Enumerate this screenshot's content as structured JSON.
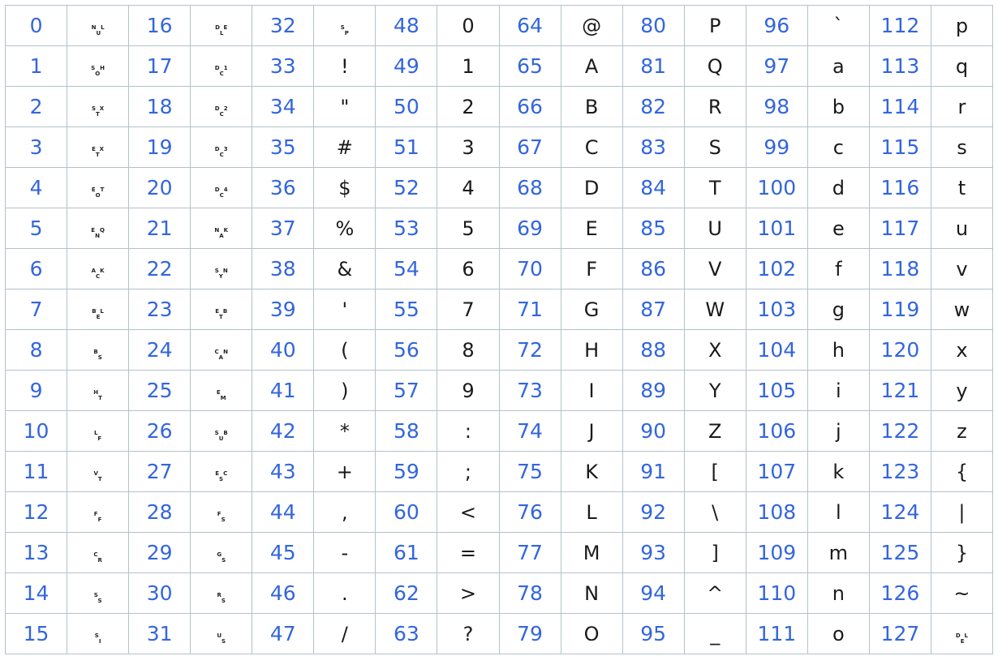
{
  "columns": [
    {
      "rows": [
        {
          "code": "0",
          "char": "",
          "ctrl": [
            "N",
            "U",
            "L"
          ]
        },
        {
          "code": "1",
          "char": "",
          "ctrl": [
            "S",
            "O",
            "H"
          ]
        },
        {
          "code": "2",
          "char": "",
          "ctrl": [
            "S",
            "T",
            "X"
          ]
        },
        {
          "code": "3",
          "char": "",
          "ctrl": [
            "E",
            "T",
            "X"
          ]
        },
        {
          "code": "4",
          "char": "",
          "ctrl": [
            "E",
            "O",
            "T"
          ]
        },
        {
          "code": "5",
          "char": "",
          "ctrl": [
            "E",
            "N",
            "Q"
          ]
        },
        {
          "code": "6",
          "char": "",
          "ctrl": [
            "A",
            "C",
            "K"
          ]
        },
        {
          "code": "7",
          "char": "",
          "ctrl": [
            "B",
            "E",
            "L"
          ]
        },
        {
          "code": "8",
          "char": "",
          "ctrl": [
            "B",
            "S"
          ]
        },
        {
          "code": "9",
          "char": "",
          "ctrl": [
            "H",
            "T"
          ]
        },
        {
          "code": "10",
          "char": "",
          "ctrl": [
            "L",
            "F"
          ]
        },
        {
          "code": "11",
          "char": "",
          "ctrl": [
            "V",
            "T"
          ]
        },
        {
          "code": "12",
          "char": "",
          "ctrl": [
            "F",
            "F"
          ]
        },
        {
          "code": "13",
          "char": "",
          "ctrl": [
            "C",
            "R"
          ]
        },
        {
          "code": "14",
          "char": "",
          "ctrl": [
            "S",
            "S"
          ]
        },
        {
          "code": "15",
          "char": "",
          "ctrl": [
            "S",
            "I"
          ]
        }
      ]
    },
    {
      "rows": [
        {
          "code": "16",
          "char": "",
          "ctrl": [
            "D",
            "L",
            "E"
          ]
        },
        {
          "code": "17",
          "char": "",
          "ctrl": [
            "D",
            "C",
            "1"
          ]
        },
        {
          "code": "18",
          "char": "",
          "ctrl": [
            "D",
            "C",
            "2"
          ]
        },
        {
          "code": "19",
          "char": "",
          "ctrl": [
            "D",
            "C",
            "3"
          ]
        },
        {
          "code": "20",
          "char": "",
          "ctrl": [
            "D",
            "C",
            "4"
          ]
        },
        {
          "code": "21",
          "char": "",
          "ctrl": [
            "N",
            "A",
            "K"
          ]
        },
        {
          "code": "22",
          "char": "",
          "ctrl": [
            "S",
            "Y",
            "N"
          ]
        },
        {
          "code": "23",
          "char": "",
          "ctrl": [
            "E",
            "T",
            "B"
          ]
        },
        {
          "code": "24",
          "char": "",
          "ctrl": [
            "C",
            "A",
            "N"
          ]
        },
        {
          "code": "25",
          "char": "",
          "ctrl": [
            "E",
            "M"
          ]
        },
        {
          "code": "26",
          "char": "",
          "ctrl": [
            "S",
            "U",
            "B"
          ]
        },
        {
          "code": "27",
          "char": "",
          "ctrl": [
            "E",
            "S",
            "C"
          ]
        },
        {
          "code": "28",
          "char": "",
          "ctrl": [
            "F",
            "S"
          ]
        },
        {
          "code": "29",
          "char": "",
          "ctrl": [
            "G",
            "S"
          ]
        },
        {
          "code": "30",
          "char": "",
          "ctrl": [
            "R",
            "S"
          ]
        },
        {
          "code": "31",
          "char": "",
          "ctrl": [
            "U",
            "S"
          ]
        }
      ]
    },
    {
      "rows": [
        {
          "code": "32",
          "char": "",
          "ctrl": [
            "S",
            "P"
          ]
        },
        {
          "code": "33",
          "char": "!"
        },
        {
          "code": "34",
          "char": "\""
        },
        {
          "code": "35",
          "char": "#"
        },
        {
          "code": "36",
          "char": "$"
        },
        {
          "code": "37",
          "char": "%"
        },
        {
          "code": "38",
          "char": "&"
        },
        {
          "code": "39",
          "char": "'"
        },
        {
          "code": "40",
          "char": "("
        },
        {
          "code": "41",
          "char": ")"
        },
        {
          "code": "42",
          "char": "*"
        },
        {
          "code": "43",
          "char": "+"
        },
        {
          "code": "44",
          "char": ","
        },
        {
          "code": "45",
          "char": "-"
        },
        {
          "code": "46",
          "char": "."
        },
        {
          "code": "47",
          "char": "/"
        }
      ]
    },
    {
      "rows": [
        {
          "code": "48",
          "char": "0"
        },
        {
          "code": "49",
          "char": "1"
        },
        {
          "code": "50",
          "char": "2"
        },
        {
          "code": "51",
          "char": "3"
        },
        {
          "code": "52",
          "char": "4"
        },
        {
          "code": "53",
          "char": "5"
        },
        {
          "code": "54",
          "char": "6"
        },
        {
          "code": "55",
          "char": "7"
        },
        {
          "code": "56",
          "char": "8"
        },
        {
          "code": "57",
          "char": "9"
        },
        {
          "code": "58",
          "char": ":"
        },
        {
          "code": "59",
          "char": ";"
        },
        {
          "code": "60",
          "char": "<"
        },
        {
          "code": "61",
          "char": "="
        },
        {
          "code": "62",
          "char": ">"
        },
        {
          "code": "63",
          "char": "?"
        }
      ]
    },
    {
      "rows": [
        {
          "code": "64",
          "char": "@"
        },
        {
          "code": "65",
          "char": "A"
        },
        {
          "code": "66",
          "char": "B"
        },
        {
          "code": "67",
          "char": "C"
        },
        {
          "code": "68",
          "char": "D"
        },
        {
          "code": "69",
          "char": "E"
        },
        {
          "code": "70",
          "char": "F"
        },
        {
          "code": "71",
          "char": "G"
        },
        {
          "code": "72",
          "char": "H"
        },
        {
          "code": "73",
          "char": "I"
        },
        {
          "code": "74",
          "char": "J"
        },
        {
          "code": "75",
          "char": "K"
        },
        {
          "code": "76",
          "char": "L"
        },
        {
          "code": "77",
          "char": "M"
        },
        {
          "code": "78",
          "char": "N"
        },
        {
          "code": "79",
          "char": "O"
        }
      ]
    },
    {
      "rows": [
        {
          "code": "80",
          "char": "P"
        },
        {
          "code": "81",
          "char": "Q"
        },
        {
          "code": "82",
          "char": "R"
        },
        {
          "code": "83",
          "char": "S"
        },
        {
          "code": "84",
          "char": "T"
        },
        {
          "code": "85",
          "char": "U"
        },
        {
          "code": "86",
          "char": "V"
        },
        {
          "code": "87",
          "char": "W"
        },
        {
          "code": "88",
          "char": "X"
        },
        {
          "code": "89",
          "char": "Y"
        },
        {
          "code": "90",
          "char": "Z"
        },
        {
          "code": "91",
          "char": "["
        },
        {
          "code": "92",
          "char": "\\"
        },
        {
          "code": "93",
          "char": "]"
        },
        {
          "code": "94",
          "char": "^"
        },
        {
          "code": "95",
          "char": "_"
        }
      ]
    },
    {
      "rows": [
        {
          "code": "96",
          "char": "`"
        },
        {
          "code": "97",
          "char": "a"
        },
        {
          "code": "98",
          "char": "b"
        },
        {
          "code": "99",
          "char": "c"
        },
        {
          "code": "100",
          "char": "d"
        },
        {
          "code": "101",
          "char": "e"
        },
        {
          "code": "102",
          "char": "f"
        },
        {
          "code": "103",
          "char": "g"
        },
        {
          "code": "104",
          "char": "h"
        },
        {
          "code": "105",
          "char": "i"
        },
        {
          "code": "106",
          "char": "j"
        },
        {
          "code": "107",
          "char": "k"
        },
        {
          "code": "108",
          "char": "l"
        },
        {
          "code": "109",
          "char": "m"
        },
        {
          "code": "110",
          "char": "n"
        },
        {
          "code": "111",
          "char": "o"
        }
      ]
    },
    {
      "rows": [
        {
          "code": "112",
          "char": "p"
        },
        {
          "code": "113",
          "char": "q"
        },
        {
          "code": "114",
          "char": "r"
        },
        {
          "code": "115",
          "char": "s"
        },
        {
          "code": "116",
          "char": "t"
        },
        {
          "code": "117",
          "char": "u"
        },
        {
          "code": "118",
          "char": "v"
        },
        {
          "code": "119",
          "char": "w"
        },
        {
          "code": "120",
          "char": "x"
        },
        {
          "code": "121",
          "char": "y"
        },
        {
          "code": "122",
          "char": "z"
        },
        {
          "code": "123",
          "char": "{"
        },
        {
          "code": "124",
          "char": "|"
        },
        {
          "code": "125",
          "char": "}"
        },
        {
          "code": "126",
          "char": "~"
        },
        {
          "code": "127",
          "char": "",
          "ctrl": [
            "D",
            "E",
            "L"
          ]
        }
      ]
    }
  ]
}
